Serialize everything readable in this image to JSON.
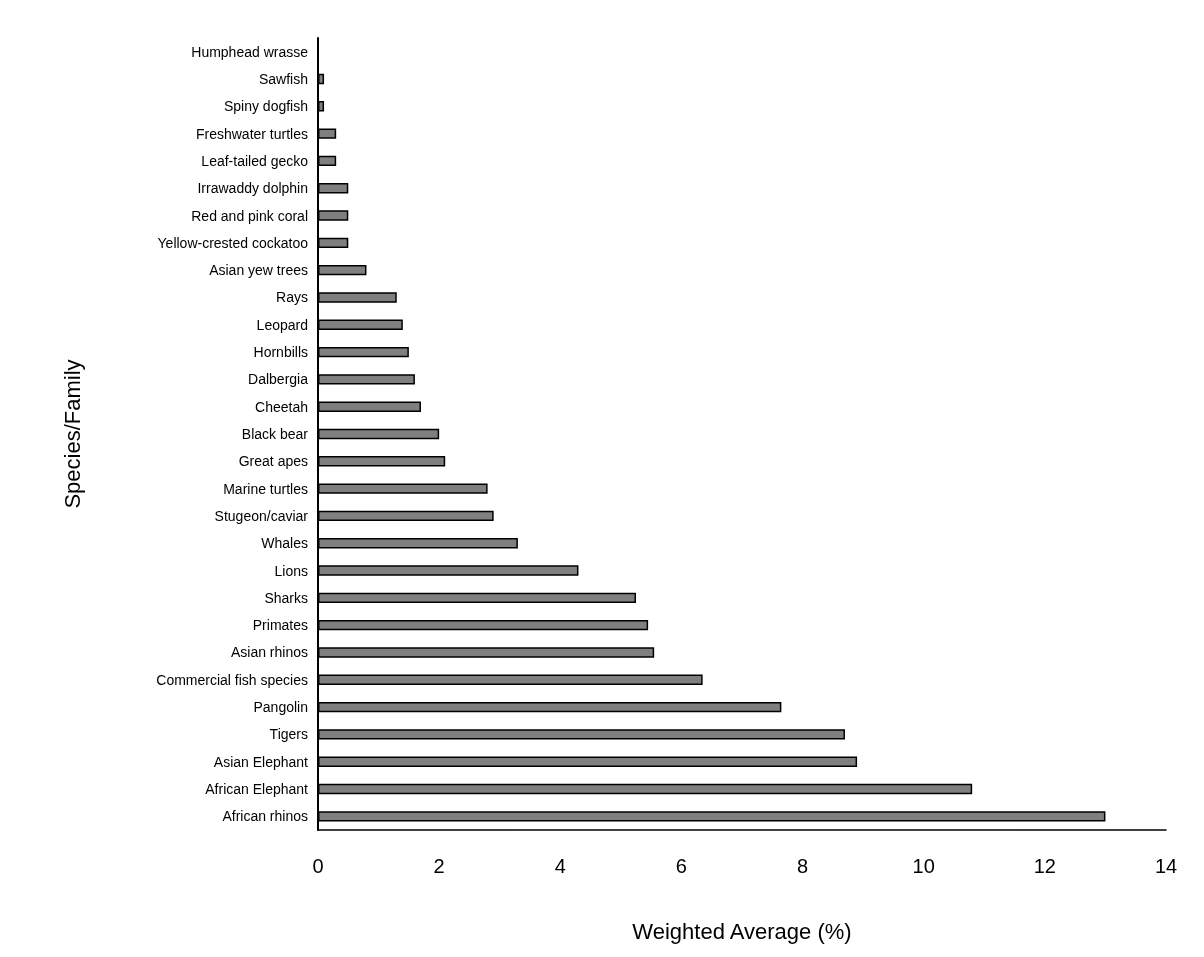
{
  "chart_data": {
    "type": "bar",
    "orientation": "horizontal",
    "xlabel": "Weighted Average (%)",
    "ylabel": "Species/Family",
    "categories": [
      "Humphead wrasse",
      "Sawfish",
      "Spiny dogfish",
      "Freshwater turtles",
      "Leaf-tailed gecko",
      "Irrawaddy dolphin",
      "Red and pink coral",
      "Yellow-crested cockatoo",
      "Asian yew trees",
      "Rays",
      "Leopard",
      "Hornbills",
      "Dalbergia",
      "Cheetah",
      "Black bear",
      "Great apes",
      "Marine turtles",
      "Stugeon/caviar",
      "Whales",
      "Lions",
      "Sharks",
      "Primates",
      "Asian rhinos",
      "Commercial fish species",
      "Pangolin",
      "Tigers",
      "Asian Elephant",
      "African Elephant",
      "African rhinos"
    ],
    "values": [
      0,
      0.1,
      0.1,
      0.3,
      0.3,
      0.5,
      0.5,
      0.5,
      0.8,
      1.3,
      1.4,
      1.5,
      1.6,
      1.7,
      2.0,
      2.1,
      2.8,
      2.9,
      3.3,
      4.3,
      5.25,
      5.45,
      5.55,
      6.35,
      7.65,
      8.7,
      8.9,
      10.8,
      13.0
    ],
    "color": "#7f7f7f",
    "xlim": [
      0,
      14
    ],
    "xticks": [
      0,
      2,
      4,
      6,
      8,
      10,
      12,
      14
    ],
    "grid": false
  }
}
